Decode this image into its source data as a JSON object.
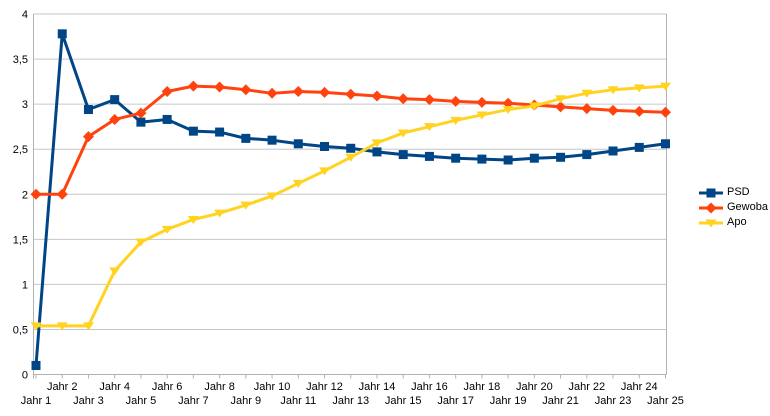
{
  "chart_data": {
    "type": "line",
    "categories": [
      "Jahr 1",
      "Jahr 2",
      "Jahr 3",
      "Jahr 4",
      "Jahr 5",
      "Jahr 6",
      "Jahr 7",
      "Jahr 8",
      "Jahr 9",
      "Jahr 10",
      "Jahr 11",
      "Jahr 12",
      "Jahr 13",
      "Jahr 14",
      "Jahr 15",
      "Jahr 16",
      "Jahr 17",
      "Jahr 18",
      "Jahr 19",
      "Jahr 20",
      "Jahr 21",
      "Jahr 22",
      "Jahr 23",
      "Jahr 24",
      "Jahr 25"
    ],
    "series": [
      {
        "name": "PSD",
        "color": "#004586",
        "marker": "square",
        "values": [
          0.1,
          3.78,
          2.94,
          3.05,
          2.8,
          2.83,
          2.7,
          2.69,
          2.62,
          2.6,
          2.56,
          2.53,
          2.51,
          2.47,
          2.44,
          2.42,
          2.4,
          2.39,
          2.38,
          2.4,
          2.41,
          2.44,
          2.48,
          2.52,
          2.56
        ]
      },
      {
        "name": "Gewoba",
        "color": "#ff420e",
        "marker": "diamond",
        "values": [
          2.0,
          2.0,
          2.64,
          2.83,
          2.9,
          3.14,
          3.2,
          3.19,
          3.16,
          3.12,
          3.14,
          3.13,
          3.11,
          3.09,
          3.06,
          3.05,
          3.03,
          3.02,
          3.01,
          2.99,
          2.97,
          2.95,
          2.93,
          2.92,
          2.91
        ]
      },
      {
        "name": "Apo",
        "color": "#ffd320",
        "marker": "triangle-down",
        "values": [
          0.54,
          0.54,
          0.54,
          1.15,
          1.47,
          1.61,
          1.72,
          1.79,
          1.88,
          1.98,
          2.12,
          2.26,
          2.41,
          2.57,
          2.68,
          2.75,
          2.82,
          2.88,
          2.94,
          2.98,
          3.06,
          3.12,
          3.16,
          3.18,
          3.2
        ]
      }
    ],
    "title": "",
    "xlabel": "",
    "ylabel": "",
    "ylim": [
      0,
      4
    ],
    "y_axis": {
      "step": 0.5,
      "tick_labels": [
        "0",
        "0,5",
        "1",
        "1,5",
        "2",
        "2,5",
        "3",
        "3,5",
        "4"
      ]
    },
    "grid": true,
    "legend_position": "right",
    "colors": {
      "gridline": "#c6c6c6",
      "axis": "#b3b3b3",
      "text": "#000000",
      "background": "#ffffff"
    }
  }
}
